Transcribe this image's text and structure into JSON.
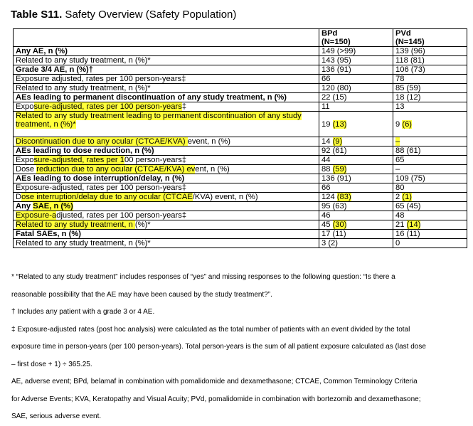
{
  "title": {
    "bold": "Table S11.",
    "rest": " Safety Overview (Safety Population)"
  },
  "columns": [
    {
      "name": "BPd",
      "n": "(N=150)"
    },
    {
      "name": "PVd",
      "n": "(N=145)"
    }
  ],
  "rows": [
    {
      "label": "Any AE, n (%)",
      "bold": true,
      "bpd": "149 (>99)",
      "pvd": "139 (96)"
    },
    {
      "label": "Related to any study treatment, n (%)*",
      "bpd": "143 (95)",
      "pvd": "118 (81)"
    },
    {
      "label": "Grade 3/4 AE, n (%)†",
      "bold": true,
      "bpd": "136 (91)",
      "pvd": "106 (73)"
    },
    {
      "label": "Exposure adjusted, rates per 100 person-years‡",
      "bpd": "66",
      "pvd": "78"
    },
    {
      "label": "Related to any study treatment, n (%)*",
      "bpd": "120 (80)",
      "pvd": "85 (59)"
    },
    {
      "label": "AEs leading to permanent discontinuation of any study treatment, n (%)",
      "bold": true,
      "bpd": "22 (15)",
      "pvd": "18 (12)"
    },
    {
      "label": "Exposure-adjusted, rates per 100 person-years‡",
      "bpd": "11",
      "pvd": "13"
    },
    {
      "label": "Related to any study treatment leading to permanent discontinuation of any study treatment, n (%)*",
      "bpd": "19 (13)",
      "pvd": "9 (6)"
    },
    {
      "label": "Discontinuation due to any ocular (CTCAE/KVA) event, n (%)",
      "bpd": "14 (9)",
      "pvd": "–"
    },
    {
      "label": "AEs leading to dose reduction, n (%)",
      "bold": true,
      "bpd": "92 (61)",
      "pvd": "88 (61)"
    },
    {
      "label": "Exposure-adjusted, rates per 100 person-years‡",
      "bpd": "44",
      "pvd": "65"
    },
    {
      "label": "Dose reduction due to any ocular (CTCAE/KVA) event, n (%)",
      "bpd": "88 (59)",
      "pvd": "–"
    },
    {
      "label": "AEs leading to dose interruption/delay, n (%)",
      "bold": true,
      "bpd": "136 (91)",
      "pvd": "109 (75)"
    },
    {
      "label": "Exposure-adjusted, rates per 100 person-years‡",
      "bpd": "66",
      "pvd": "80"
    },
    {
      "label": "Dose interruption/delay due to any ocular (CTCAE/KVA) event, n (%)",
      "bpd": "124 (83)",
      "pvd": "2 (1)"
    },
    {
      "label": "Any SAE, n (%)",
      "bold": true,
      "bpd": "95 (63)",
      "pvd": "65 (45)"
    },
    {
      "label": "Exposure-adjusted, rates per 100 person-years‡",
      "bpd": "46",
      "pvd": "48"
    },
    {
      "label": "Related to any study treatment, n (%)*",
      "bpd": "45 (30)",
      "pvd": "21 (14)"
    },
    {
      "label": "Fatal SAEs, n (%)",
      "bold": true,
      "bpd": "17 (11)",
      "pvd": "16 (11)"
    },
    {
      "label": "Related to any study treatment, n (%)*",
      "bpd": "3 (2)",
      "pvd": "0"
    }
  ],
  "footnotes": [
    "* “Related to any study treatment” includes responses of “yes” and missing responses to the following question: “Is there a",
    "reasonable possibility that the AE may have been caused by the study treatment?”.",
    "† Includes any patient with a grade 3 or 4 AE.",
    "‡ Exposure-adjusted rates (post hoc analysis) were calculated as the total number of patients with an event divided by the total",
    "exposure time in person-years (per 100 person-years). Total person-years is the sum of all patient exposure calculated as (last dose",
    "– first dose + 1) ÷ 365.25.",
    "AE, adverse event; BPd, belamaf in combination with pomalidomide and dexamethasone; CTCAE, Common Terminology Criteria",
    "for Adverse Events; KVA, Keratopathy and Visual Acuity; PVd, pomalidomide in combination with bortezomib and dexamethasone;",
    "SAE, serious adverse event."
  ],
  "highlight_color": "#ffff3a"
}
